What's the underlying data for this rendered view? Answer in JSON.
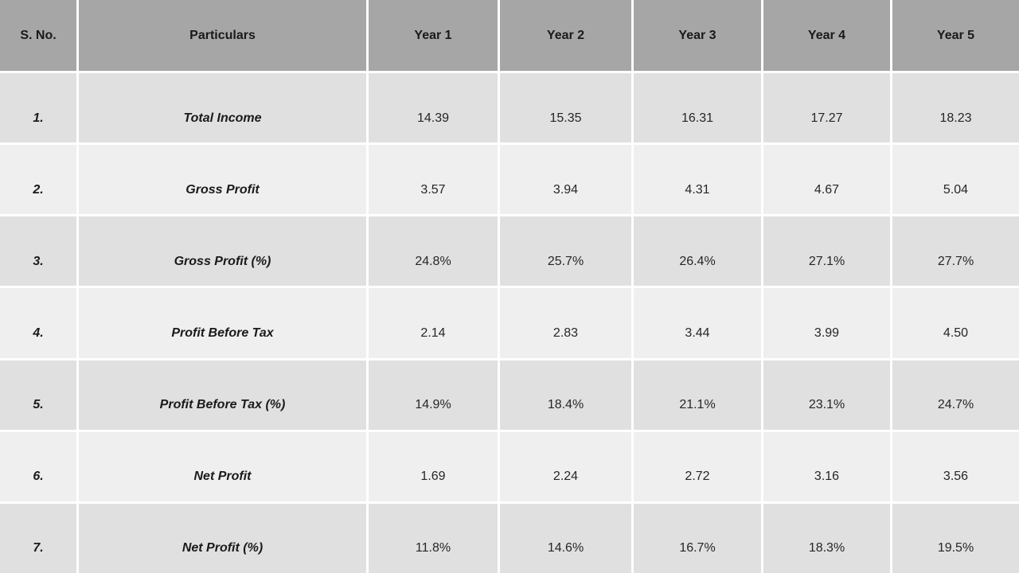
{
  "table": {
    "headers": [
      "S. No.",
      "Particulars",
      "Year 1",
      "Year 2",
      "Year 3",
      "Year 4",
      "Year 5"
    ],
    "rows": [
      {
        "sno": "1.",
        "particulars": "Total Income",
        "values": [
          "14.39",
          "15.35",
          "16.31",
          "17.27",
          "18.23"
        ]
      },
      {
        "sno": "2.",
        "particulars": "Gross Profit",
        "values": [
          "3.57",
          "3.94",
          "4.31",
          "4.67",
          "5.04"
        ]
      },
      {
        "sno": "3.",
        "particulars": "Gross Profit (%)",
        "values": [
          "24.8%",
          "25.7%",
          "26.4%",
          "27.1%",
          "27.7%"
        ]
      },
      {
        "sno": "4.",
        "particulars": "Profit Before Tax",
        "values": [
          "2.14",
          "2.83",
          "3.44",
          "3.99",
          "4.50"
        ]
      },
      {
        "sno": "5.",
        "particulars": "Profit Before Tax (%)",
        "values": [
          "14.9%",
          "18.4%",
          "21.1%",
          "23.1%",
          "24.7%"
        ]
      },
      {
        "sno": "6.",
        "particulars": "Net Profit",
        "values": [
          "1.69",
          "2.24",
          "2.72",
          "3.16",
          "3.56"
        ]
      },
      {
        "sno": "7.",
        "particulars": "Net Profit (%)",
        "values": [
          "11.8%",
          "14.6%",
          "16.7%",
          "18.3%",
          "19.5%"
        ]
      }
    ]
  },
  "colors": {
    "header_bg": "#a6a6a6",
    "row_dark": "#e0e0e0",
    "row_light": "#efefef",
    "gridline": "#ffffff",
    "header_text": "#1a1a1a",
    "value_text": "#262626"
  }
}
